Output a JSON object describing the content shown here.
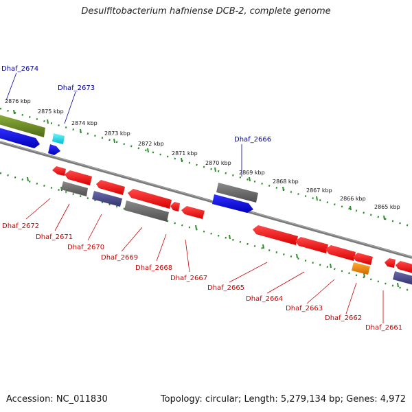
{
  "title": "Desulfitobacterium hafniense DCB-2, complete genome",
  "footer": {
    "accession": "Accession: NC_011830",
    "summary": "Topology: circular; Length: 5,279,134 bp; Genes: 4,972"
  },
  "kbp_ticks": [
    "2876 kbp",
    "2875 kbp",
    "2874 kbp",
    "2873 kbp",
    "2872 kbp",
    "2871 kbp",
    "2870 kbp",
    "2869 kbp",
    "2868 kbp",
    "2867 kbp",
    "2866 kbp",
    "2865 kbp"
  ],
  "colors": {
    "forward_label": "#00009c",
    "reverse_label": "#cc0000",
    "backbone": "#808080",
    "tick_dots": "#2e8b2e",
    "gene_red": "#ff0000",
    "gene_gray": "#6e6e6e",
    "gene_slate": "#4a4a8c",
    "gene_blue": "#0000ee",
    "gene_cyan": "#00e0ee",
    "gene_olive": "#6b8e23",
    "gene_orange": "#ff8c00"
  },
  "forward_genes": [
    {
      "label": "Dhaf_2674",
      "color": "olive"
    },
    {
      "label": "Dhaf_2673",
      "color": "cyan"
    },
    {
      "label": "Dhaf_2666",
      "color": "blue"
    }
  ],
  "reverse_genes": [
    {
      "label": "Dhaf_2672",
      "color": "red"
    },
    {
      "label": "Dhaf_2671",
      "color": "gray"
    },
    {
      "label": "Dhaf_2670",
      "color": "slate"
    },
    {
      "label": "Dhaf_2669",
      "color": "gray"
    },
    {
      "label": "Dhaf_2668",
      "color": "red"
    },
    {
      "label": "Dhaf_2667",
      "color": "red"
    },
    {
      "label": "Dhaf_2665",
      "color": "red"
    },
    {
      "label": "Dhaf_2664",
      "color": "red"
    },
    {
      "label": "Dhaf_2663",
      "color": "red"
    },
    {
      "label": "Dhaf_2662",
      "color": "orange"
    },
    {
      "label": "Dhaf_2661",
      "color": "red"
    }
  ]
}
